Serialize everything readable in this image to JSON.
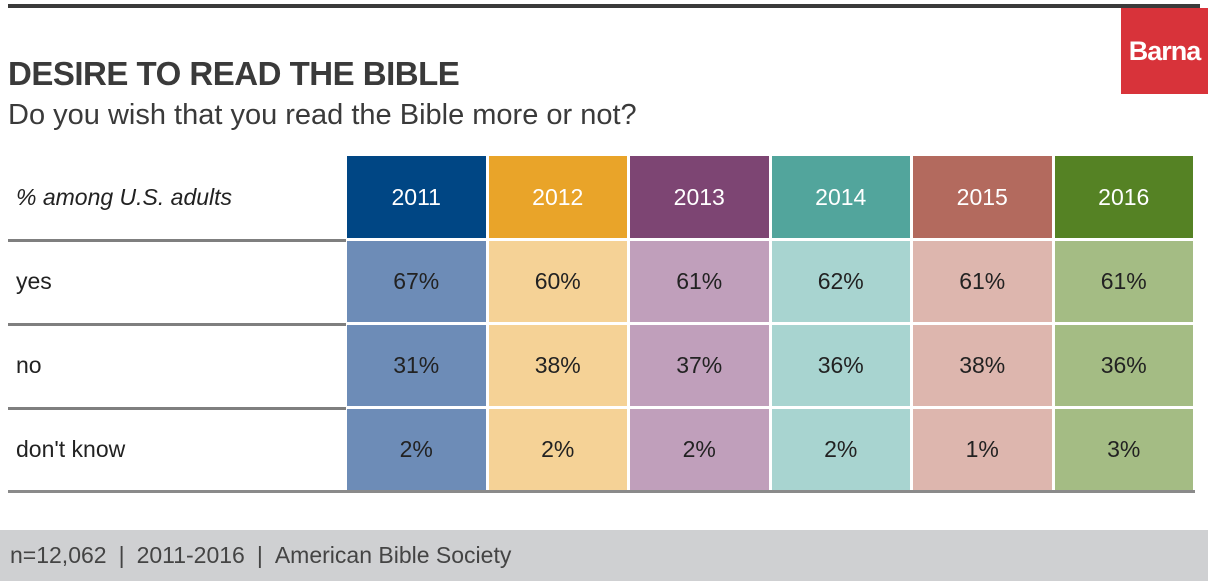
{
  "brand": {
    "name": "Barna",
    "color": "#d8333a"
  },
  "title": "DESIRE TO READ THE BIBLE",
  "subtitle": "Do you wish that you read the Bible more or not?",
  "chart_data": {
    "type": "table",
    "header_label": "% among U.S. adults",
    "columns": [
      "2011",
      "2012",
      "2013",
      "2014",
      "2015",
      "2016"
    ],
    "rows": [
      {
        "label": "yes",
        "values": [
          "67%",
          "60%",
          "61%",
          "62%",
          "61%",
          "61%"
        ]
      },
      {
        "label": "no",
        "values": [
          "31%",
          "38%",
          "37%",
          "36%",
          "38%",
          "36%"
        ]
      },
      {
        "label": "don't know",
        "values": [
          "2%",
          "2%",
          "2%",
          "2%",
          "1%",
          "3%"
        ]
      }
    ],
    "header_colors": [
      "#004684",
      "#e9a429",
      "#7d4573",
      "#52a59c",
      "#b36a5e",
      "#558224"
    ],
    "body_colors": [
      "#6d8cb7",
      "#f5d296",
      "#c09fbb",
      "#a8d4d0",
      "#ddb6ae",
      "#a4bc84"
    ]
  },
  "footer": {
    "sample": "n=12,062",
    "years": "2011-2016",
    "source": "American Bible Society",
    "separator": "|"
  }
}
